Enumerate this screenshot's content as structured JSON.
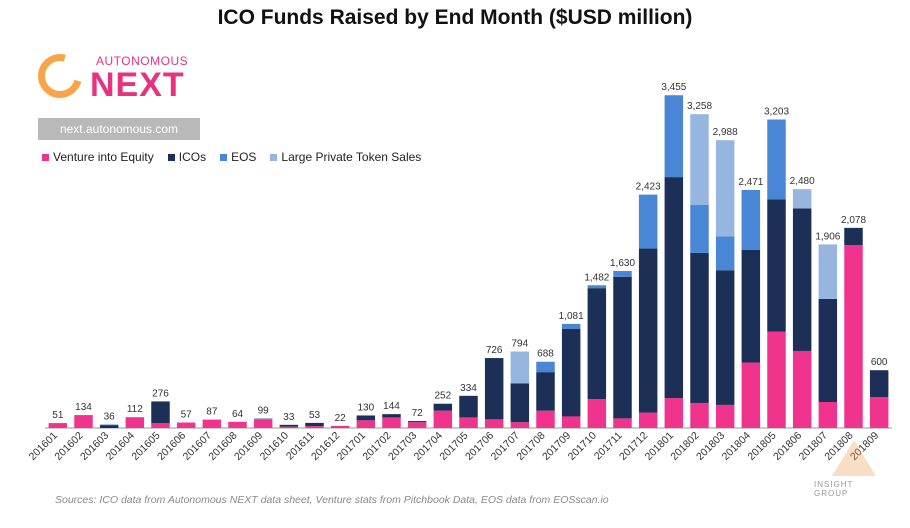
{
  "title": "ICO Funds Raised by End Month ($USD million)",
  "logo": {
    "small_text": "AUTONOMOUS",
    "big_text": "NEXT",
    "url": "next.autonomous.com"
  },
  "source": "Sources: ICO data from Autonomous NEXT data sheet, Venture stats from Pitchbook Data, EOS data from EOSscan.io",
  "watermark": "INSIGHT GROUP",
  "colors": {
    "venture": "#f0338c",
    "icos": "#1b2f57",
    "eos": "#4a86d6",
    "large": "#96b6e0",
    "axis": "#999999"
  },
  "chart_data": {
    "type": "bar",
    "stacked": true,
    "title": "ICO Funds Raised by End Month ($USD million)",
    "categories": [
      "201601",
      "201602",
      "201603",
      "201604",
      "201605",
      "201606",
      "201607",
      "201608",
      "201609",
      "201610",
      "201611",
      "201612",
      "201701",
      "201702",
      "201703",
      "201704",
      "201705",
      "201706",
      "201707",
      "201708",
      "201709",
      "201710",
      "201711",
      "201712",
      "201801",
      "201802",
      "201803",
      "201804",
      "201805",
      "201806",
      "201807",
      "201808",
      "201809"
    ],
    "totals": [
      "51",
      "134",
      "36",
      "112",
      "276",
      "57",
      "87",
      "64",
      "99",
      "33",
      "53",
      "22",
      "130",
      "144",
      "72",
      "252",
      "334",
      "726",
      "794",
      "688",
      "1,081",
      "1,482",
      "1,630",
      "2,423",
      "3,455",
      "3,258",
      "2,988",
      "2,471",
      "3,203",
      "2,480",
      "1,906",
      "2,078",
      "600"
    ],
    "series": [
      {
        "name": "Venture into Equity",
        "color": "#f0338c",
        "values": [
          51,
          134,
          0,
          112,
          50,
          57,
          87,
          64,
          90,
          15,
          20,
          22,
          80,
          110,
          60,
          180,
          110,
          90,
          60,
          180,
          120,
          300,
          100,
          160,
          310,
          260,
          240,
          680,
          1000,
          800,
          270,
          1900,
          320
        ]
      },
      {
        "name": "ICOs",
        "color": "#1b2f57",
        "values": [
          0,
          0,
          30,
          0,
          226,
          0,
          0,
          0,
          0,
          18,
          33,
          0,
          50,
          34,
          12,
          72,
          224,
          636,
          404,
          400,
          911,
          1152,
          1470,
          1703,
          2295,
          1558,
          1398,
          1171,
          1373,
          1480,
          1070,
          178,
          280
        ]
      },
      {
        "name": "EOS",
        "color": "#4a86d6",
        "values": [
          0,
          0,
          6,
          0,
          0,
          0,
          0,
          0,
          9,
          0,
          0,
          0,
          0,
          0,
          0,
          0,
          0,
          0,
          0,
          108,
          50,
          30,
          60,
          560,
          850,
          500,
          350,
          620,
          830,
          0,
          0,
          0,
          0
        ]
      },
      {
        "name": "Large Private Token Sales",
        "color": "#96b6e0",
        "values": [
          0,
          0,
          0,
          0,
          0,
          0,
          0,
          0,
          0,
          0,
          0,
          0,
          0,
          0,
          0,
          0,
          0,
          0,
          330,
          0,
          0,
          0,
          0,
          0,
          0,
          940,
          1000,
          0,
          0,
          200,
          566,
          0,
          0
        ]
      }
    ],
    "ylim": [
      0,
      3800
    ],
    "legend_position": "top-left",
    "grid": false
  }
}
